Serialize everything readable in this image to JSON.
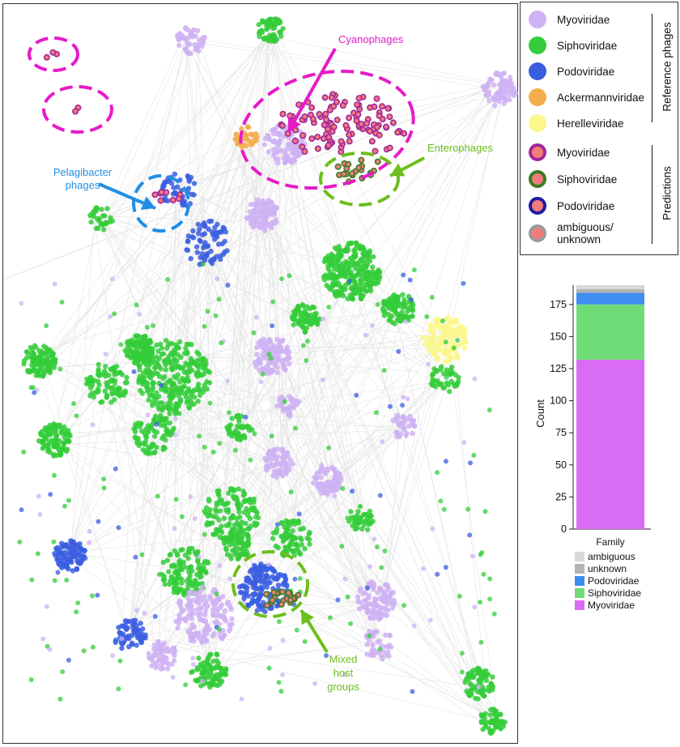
{
  "colors": {
    "myoviridae": "#cfb2f3",
    "siphoviridae": "#34cc3a",
    "podoviridae": "#3a5ee0",
    "ackermannviridae": "#f3ad4a",
    "herelleviridae": "#fbf78c",
    "pred_myo_ring": "#a0289a",
    "pred_sipho_ring": "#3a7a22",
    "pred_podo_ring": "#1f1aa0",
    "pred_unknown_ring": "#9a9a9a",
    "pred_fill": "#f27b7b",
    "magenta": "#e61bc9",
    "blue_ann": "#1f8fe6",
    "green_ann": "#6cbf1c"
  },
  "legend": {
    "reference": {
      "group_label": "Reference phages",
      "items": [
        {
          "label": "Myoviridae",
          "color": "#cfb2f3"
        },
        {
          "label": "Siphoviridae",
          "color": "#34cc3a"
        },
        {
          "label": "Podoviridae",
          "color": "#3a5ee0"
        },
        {
          "label": "Ackermannviridae",
          "color": "#f3ad4a"
        },
        {
          "label": "Herelleviridae",
          "color": "#fbf78c"
        }
      ]
    },
    "predictions": {
      "group_label": "Predictions",
      "items": [
        {
          "label": "Myoviridae",
          "ring": "#a0289a"
        },
        {
          "label": "Siphoviridae",
          "ring": "#3a7a22"
        },
        {
          "label": "Podoviridae",
          "ring": "#1f1aa0"
        },
        {
          "label": "ambiguous/ unknown",
          "ring": "#9a9a9a"
        }
      ]
    }
  },
  "annotations": {
    "cyanophages": "Cyanophages",
    "enterophages": "Enterophages",
    "pelagibacter": "Pelagibacter phages",
    "mixed_host": "Mixed host groups"
  },
  "chart_data": {
    "type": "bar",
    "stacked": true,
    "categories": [
      ""
    ],
    "ylabel": "Count",
    "legend_title": "Family",
    "ylim": [
      0,
      190
    ],
    "yticks": [
      0,
      25,
      50,
      75,
      100,
      125,
      150,
      175
    ],
    "series": [
      {
        "name": "Myoviridae",
        "values": [
          132
        ],
        "color": "#d96cf5"
      },
      {
        "name": "Siphoviridae",
        "values": [
          43
        ],
        "color": "#6fdc77"
      },
      {
        "name": "Podoviridae",
        "values": [
          9
        ],
        "color": "#3d8ef0"
      },
      {
        "name": "unknown",
        "values": [
          3
        ],
        "color": "#b4b4b4"
      },
      {
        "name": "ambiguous",
        "values": [
          3
        ],
        "color": "#d8d8d8"
      }
    ],
    "legend_order": [
      "ambiguous",
      "unknown",
      "Podoviridae",
      "Siphoviridae",
      "Myoviridae"
    ]
  }
}
